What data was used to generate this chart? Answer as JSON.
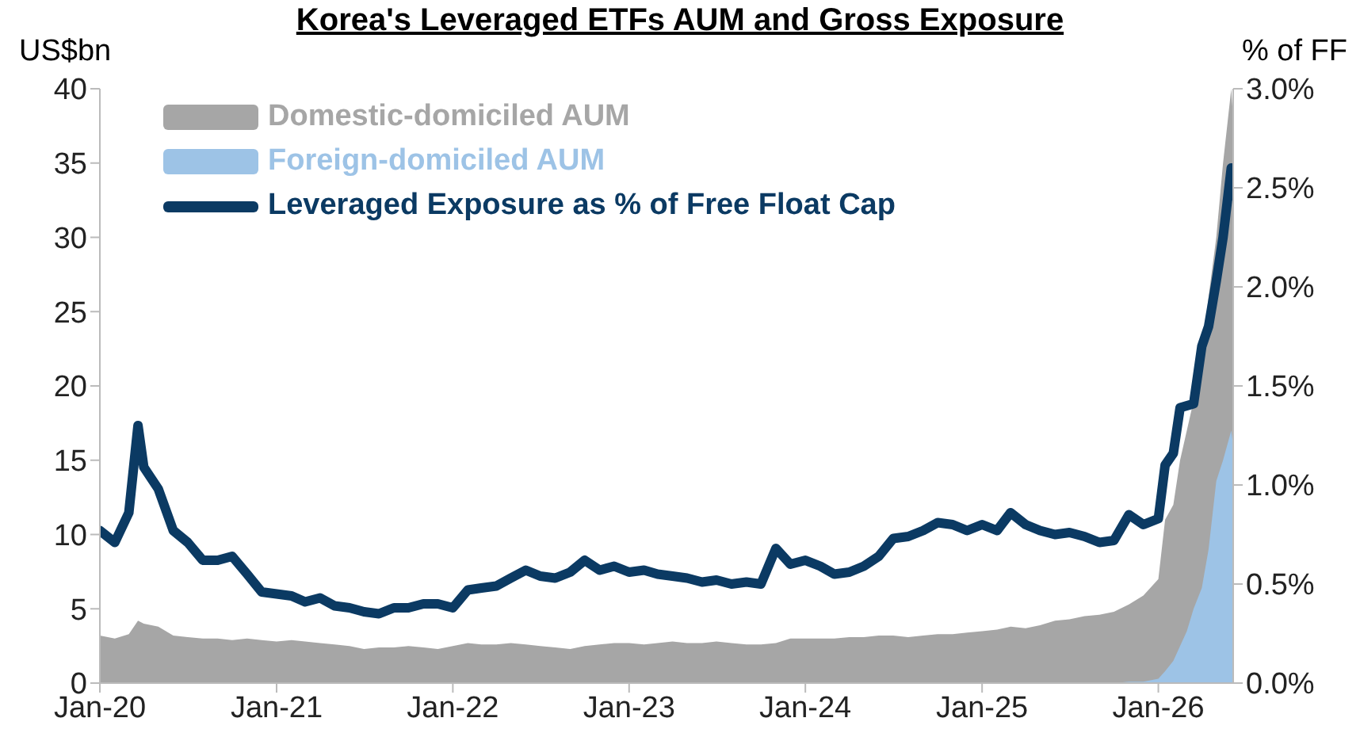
{
  "chart_data": {
    "type": "area",
    "title": "Korea's Leveraged ETFs AUM and Gross Exposure",
    "ylabel": "US$bn",
    "y2label": "% of FF",
    "x": [
      "2020-01",
      "2020-02",
      "2020-03",
      "2020-03-20",
      "2020-04",
      "2020-05",
      "2020-06",
      "2020-07",
      "2020-08",
      "2020-09",
      "2020-10",
      "2020-11",
      "2020-12",
      "2021-01",
      "2021-02",
      "2021-03",
      "2021-04",
      "2021-05",
      "2021-06",
      "2021-07",
      "2021-08",
      "2021-09",
      "2021-10",
      "2021-11",
      "2021-12",
      "2022-01",
      "2022-02",
      "2022-03",
      "2022-04",
      "2022-05",
      "2022-06",
      "2022-07",
      "2022-08",
      "2022-09",
      "2022-10",
      "2022-11",
      "2022-12",
      "2023-01",
      "2023-02",
      "2023-03",
      "2023-04",
      "2023-05",
      "2023-06",
      "2023-07",
      "2023-08",
      "2023-09",
      "2023-10",
      "2023-11",
      "2023-12",
      "2024-01",
      "2024-02",
      "2024-03",
      "2024-04",
      "2024-05",
      "2024-06",
      "2024-07",
      "2024-08",
      "2024-09",
      "2024-10",
      "2024-11",
      "2024-12",
      "2025-01",
      "2025-02",
      "2025-03",
      "2025-04",
      "2025-05",
      "2025-06",
      "2025-07",
      "2025-08",
      "2025-09",
      "2025-10",
      "2025-11",
      "2025-12",
      "2026-01",
      "2026-01-15",
      "2026-02",
      "2026-02-15",
      "2026-03",
      "2026-03-15",
      "2026-04",
      "2026-04-15",
      "2026-05",
      "2026-05-15",
      "2026-06",
      "2026-06-05"
    ],
    "series": [
      {
        "name": "Domestic-domiciled AUM",
        "color": "#a6a6a6",
        "values": [
          3.2,
          3.0,
          3.3,
          4.2,
          4.0,
          3.8,
          3.2,
          3.1,
          3.0,
          3.0,
          2.9,
          3.0,
          2.9,
          2.8,
          2.9,
          2.8,
          2.7,
          2.6,
          2.5,
          2.3,
          2.4,
          2.4,
          2.5,
          2.4,
          2.3,
          2.5,
          2.7,
          2.6,
          2.6,
          2.7,
          2.6,
          2.5,
          2.4,
          2.3,
          2.5,
          2.6,
          2.7,
          2.7,
          2.6,
          2.7,
          2.8,
          2.7,
          2.7,
          2.8,
          2.7,
          2.6,
          2.6,
          2.7,
          3.0,
          3.0,
          3.0,
          3.0,
          3.1,
          3.1,
          3.2,
          3.2,
          3.1,
          3.2,
          3.3,
          3.3,
          3.4,
          3.5,
          3.6,
          3.8,
          3.7,
          3.9,
          4.2,
          4.3,
          4.5,
          4.6,
          4.8,
          5.3,
          5.9,
          7.0,
          11,
          12,
          15,
          17,
          19,
          22,
          26,
          30,
          35,
          40,
          38
        ]
      },
      {
        "name": "Foreign-domiciled AUM",
        "color": "#9dc3e6",
        "values": [
          0,
          0,
          0,
          0,
          0,
          0,
          0,
          0,
          0,
          0,
          0,
          0,
          0,
          0,
          0,
          0,
          0,
          0,
          0,
          0,
          0,
          0,
          0,
          0,
          0,
          0,
          0,
          0,
          0,
          0,
          0,
          0,
          0,
          0,
          0,
          0,
          0,
          0,
          0,
          0,
          0,
          0,
          0,
          0,
          0,
          0,
          0,
          0,
          0,
          0,
          0,
          0,
          0,
          0,
          0,
          0,
          0,
          0,
          0,
          0,
          0,
          0,
          0,
          0,
          0,
          0,
          0,
          0,
          0,
          0,
          0,
          0.1,
          0.1,
          0.3,
          0.8,
          1.5,
          2.5,
          3.5,
          5,
          6.4,
          9,
          13.6,
          15,
          17,
          16
        ]
      },
      {
        "name": "Leveraged Exposure as % of Free Float Cap",
        "type": "line",
        "axis": "y2",
        "color": "#0b3a63",
        "values": [
          0.77,
          0.71,
          0.86,
          1.3,
          1.09,
          0.98,
          0.77,
          0.71,
          0.62,
          0.62,
          0.64,
          0.55,
          0.46,
          0.45,
          0.44,
          0.41,
          0.43,
          0.39,
          0.38,
          0.36,
          0.35,
          0.38,
          0.38,
          0.4,
          0.4,
          0.38,
          0.47,
          0.48,
          0.49,
          0.53,
          0.57,
          0.54,
          0.53,
          0.56,
          0.62,
          0.57,
          0.59,
          0.56,
          0.57,
          0.55,
          0.54,
          0.53,
          0.51,
          0.52,
          0.5,
          0.51,
          0.5,
          0.68,
          0.6,
          0.62,
          0.59,
          0.55,
          0.56,
          0.59,
          0.64,
          0.73,
          0.74,
          0.77,
          0.81,
          0.8,
          0.77,
          0.8,
          0.77,
          0.86,
          0.8,
          0.77,
          0.75,
          0.76,
          0.74,
          0.71,
          0.72,
          0.85,
          0.8,
          0.83,
          1.1,
          1.16,
          1.39,
          1.4,
          1.41,
          1.7,
          1.8,
          2.03,
          2.25,
          2.6,
          2.46
        ]
      }
    ],
    "xlim": [
      "2020-01",
      "2026-06-05"
    ],
    "xticks": [
      {
        "value": "2020-01",
        "label": "Jan-20"
      },
      {
        "value": "2021-01",
        "label": "Jan-21"
      },
      {
        "value": "2022-01",
        "label": "Jan-22"
      },
      {
        "value": "2023-01",
        "label": "Jan-23"
      },
      {
        "value": "2024-01",
        "label": "Jan-24"
      },
      {
        "value": "2025-01",
        "label": "Jan-25"
      },
      {
        "value": "2026-01",
        "label": "Jan-26"
      }
    ],
    "ylim": [
      0,
      40
    ],
    "yticks": [
      0,
      5,
      10,
      15,
      20,
      25,
      30,
      35,
      40
    ],
    "y2lim": [
      0,
      3
    ],
    "y2ticks": [
      {
        "value": 0,
        "label": "0.0%"
      },
      {
        "value": 0.5,
        "label": "0.5%"
      },
      {
        "value": 1,
        "label": "1.0%"
      },
      {
        "value": 1.5,
        "label": "1.5%"
      },
      {
        "value": 2,
        "label": "2.0%"
      },
      {
        "value": 2.5,
        "label": "2.5%"
      },
      {
        "value": 3,
        "label": "3.0%"
      }
    ],
    "legend": "top left",
    "grid": false,
    "marker": "none",
    "line_style": "solid"
  }
}
